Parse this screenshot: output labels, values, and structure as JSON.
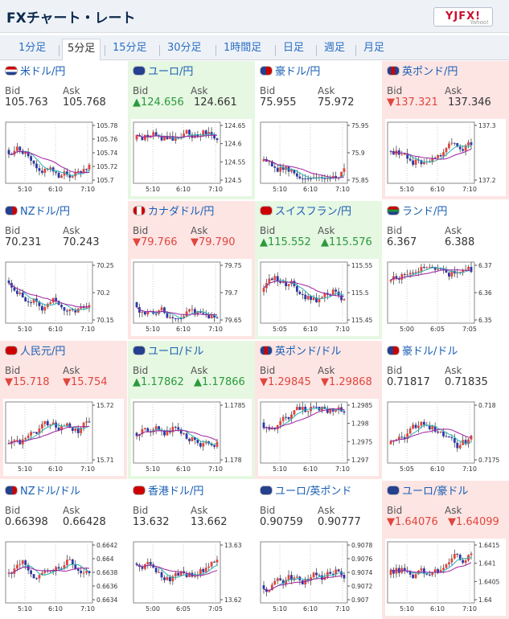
{
  "header": {
    "title": "FXチャート・レート",
    "logo": "YJFX!",
    "logo_sub": "Yahoo!"
  },
  "tabs": [
    "1分足",
    "5分足",
    "15分足",
    "30分足",
    "1時間足",
    "日足",
    "週足",
    "月足"
  ],
  "active_tab": "5分足",
  "labels": {
    "bid": "Bid",
    "ask": "Ask"
  },
  "colors": {
    "up_bg": "#e6f7e2",
    "down_bg": "#fde5e4",
    "up_text": "#2a9a3c",
    "down_text": "#e0463d",
    "link": "#1a5fb4"
  },
  "pairs": [
    {
      "name": "米ドル/円",
      "flag": "us",
      "trend": "none",
      "bid": "105.763",
      "ask": "105.768",
      "bid_dir": "none",
      "ask_dir": "none",
      "y_ticks": [
        "105.78",
        "105.76",
        "105.74",
        "105.72",
        "105.7"
      ],
      "x_ticks": [
        "5:10",
        "6:10",
        "7:10"
      ]
    },
    {
      "name": "ユーロ/円",
      "flag": "eu",
      "trend": "up",
      "bid": "▲124.656",
      "ask": "124.661",
      "bid_dir": "up",
      "ask_dir": "none",
      "y_ticks": [
        "124.65",
        "124.6",
        "124.55",
        "124.5"
      ],
      "x_ticks": [
        "5:10",
        "6:10",
        "7:10"
      ]
    },
    {
      "name": "豪ドル/円",
      "flag": "au",
      "trend": "none",
      "bid": "75.955",
      "ask": "75.972",
      "bid_dir": "none",
      "ask_dir": "none",
      "y_ticks": [
        "75.95",
        "75.9",
        "75.85"
      ],
      "x_ticks": [
        "5:10",
        "6:10",
        "7:10"
      ]
    },
    {
      "name": "英ポンド/円",
      "flag": "gb",
      "trend": "down",
      "bid": "▼137.321",
      "ask": "137.346",
      "bid_dir": "down",
      "ask_dir": "none",
      "y_ticks": [
        "137.3",
        "137.2"
      ],
      "x_ticks": [
        "5:10",
        "6:10",
        "7:10"
      ]
    },
    {
      "name": "NZドル/円",
      "flag": "nz",
      "trend": "none",
      "bid": "70.231",
      "ask": "70.243",
      "bid_dir": "none",
      "ask_dir": "none",
      "y_ticks": [
        "70.25",
        "70.2",
        "70.15"
      ],
      "x_ticks": [
        "5:10",
        "6:10",
        "7:10"
      ]
    },
    {
      "name": "カナダドル/円",
      "flag": "ca",
      "trend": "down",
      "bid": "▼79.766",
      "ask": "▼79.790",
      "bid_dir": "down",
      "ask_dir": "down",
      "y_ticks": [
        "79.75",
        "79.7",
        "79.65"
      ],
      "x_ticks": [
        "5:10",
        "6:10",
        "7:10"
      ]
    },
    {
      "name": "スイスフラン/円",
      "flag": "ch",
      "trend": "up",
      "bid": "▲115.552",
      "ask": "▲115.576",
      "bid_dir": "up",
      "ask_dir": "up",
      "y_ticks": [
        "115.55",
        "115.5",
        "115.45"
      ],
      "x_ticks": [
        "5:05",
        "6:10",
        "7:10"
      ]
    },
    {
      "name": "ランド/円",
      "flag": "za",
      "trend": "none",
      "bid": "6.367",
      "ask": "6.388",
      "bid_dir": "none",
      "ask_dir": "none",
      "y_ticks": [
        "6.37",
        "6.36",
        "6.35"
      ],
      "x_ticks": [
        "5:00",
        "6:05",
        "7:05"
      ]
    },
    {
      "name": "人民元/円",
      "flag": "cn",
      "trend": "down",
      "bid": "▼15.718",
      "ask": "▼15.754",
      "bid_dir": "down",
      "ask_dir": "down",
      "y_ticks": [
        "15.72",
        "15.71"
      ],
      "x_ticks": [
        "5:10",
        "6:10",
        "7:10"
      ]
    },
    {
      "name": "ユーロ/ドル",
      "flag": "eu",
      "trend": "up",
      "bid": "▲1.17862",
      "ask": "▲1.17866",
      "bid_dir": "up",
      "ask_dir": "up",
      "y_ticks": [
        "1.1785",
        "1.178"
      ],
      "x_ticks": [
        "5:10",
        "6:10",
        "7:10"
      ]
    },
    {
      "name": "英ポンド/ドル",
      "flag": "gb",
      "trend": "down",
      "bid": "▼1.29845",
      "ask": "▼1.29868",
      "bid_dir": "down",
      "ask_dir": "down",
      "y_ticks": [
        "1.2985",
        "1.298",
        "1.2975",
        "1.297"
      ],
      "x_ticks": [
        "5:10",
        "6:10",
        "7:10"
      ]
    },
    {
      "name": "豪ドル/ドル",
      "flag": "au",
      "trend": "none",
      "bid": "0.71817",
      "ask": "0.71835",
      "bid_dir": "none",
      "ask_dir": "none",
      "y_ticks": [
        "0.718",
        "0.7175"
      ],
      "x_ticks": [
        "5:05",
        "6:10",
        "7:10"
      ]
    },
    {
      "name": "NZドル/ドル",
      "flag": "nz",
      "trend": "none",
      "bid": "0.66398",
      "ask": "0.66428",
      "bid_dir": "none",
      "ask_dir": "none",
      "y_ticks": [
        "0.6642",
        "0.664",
        "0.6638",
        "0.6636",
        "0.6634"
      ],
      "x_ticks": [
        "5:10",
        "6:10",
        "7:10"
      ]
    },
    {
      "name": "香港ドル/円",
      "flag": "hk",
      "trend": "none",
      "bid": "13.632",
      "ask": "13.662",
      "bid_dir": "none",
      "ask_dir": "none",
      "y_ticks": [
        "13.63",
        "13.62"
      ],
      "x_ticks": [
        "5:00",
        "6:05",
        "7:05"
      ]
    },
    {
      "name": "ユーロ/英ポンド",
      "flag": "eu",
      "trend": "none",
      "bid": "0.90759",
      "ask": "0.90777",
      "bid_dir": "none",
      "ask_dir": "none",
      "y_ticks": [
        "0.9078",
        "0.9076",
        "0.9074",
        "0.9072",
        "0.907"
      ],
      "x_ticks": [
        "5:10",
        "6:10",
        "7:10"
      ]
    },
    {
      "name": "ユーロ/豪ドル",
      "flag": "eu",
      "trend": "down",
      "bid": "▼1.64076",
      "ask": "▼1.64099",
      "bid_dir": "down",
      "ask_dir": "down",
      "y_ticks": [
        "1.6415",
        "1.641",
        "1.6405",
        "1.64"
      ],
      "x_ticks": [
        "5:10",
        "6:10",
        "7:10"
      ]
    }
  ]
}
